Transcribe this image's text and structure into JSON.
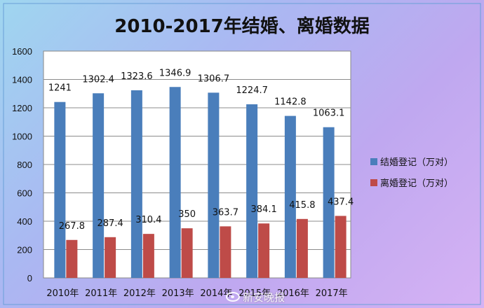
{
  "chart_data": {
    "type": "bar",
    "title": "2010-2017年结婚、离婚数据",
    "categories": [
      "2010年",
      "2011年",
      "2012年",
      "2013年",
      "2014年",
      "2015年",
      "2016年",
      "2017年"
    ],
    "series": [
      {
        "name": "结婚登记（万对）",
        "values": [
          1241,
          1302.4,
          1323.6,
          1346.9,
          1306.7,
          1224.7,
          1142.8,
          1063.1
        ],
        "color": "#4a7ebb"
      },
      {
        "name": "离婚登记（万对）",
        "values": [
          267.8,
          287.4,
          310.4,
          350,
          363.7,
          384.1,
          415.8,
          437.4
        ],
        "color": "#be4b48"
      }
    ],
    "data_labels": [
      [
        "1241",
        "1302.4",
        "1323.6",
        "1346.9",
        "1306.7",
        "1224.7",
        "1142.8",
        "1063.1"
      ],
      [
        "267.8",
        "287.4",
        "310.4",
        "350",
        "363.7",
        "384.1",
        "415.8",
        "437.4"
      ]
    ],
    "ylim": [
      0,
      1600
    ],
    "yticks": [
      "0",
      "200",
      "400",
      "600",
      "800",
      "1000",
      "1200",
      "1400",
      "1600"
    ],
    "xlabel": "",
    "ylabel": "",
    "grid": true,
    "legend_position": "right"
  },
  "watermark": "新安晚报",
  "watermark_icon": "weibo-icon"
}
